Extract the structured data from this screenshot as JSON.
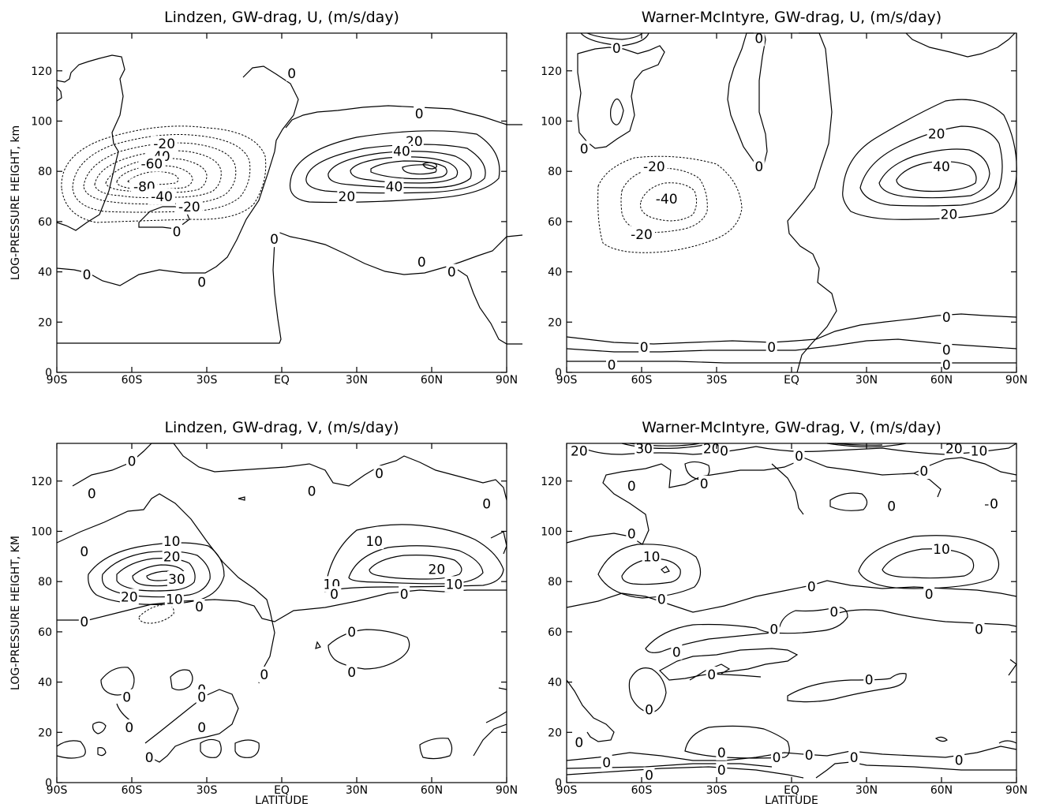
{
  "chart_data": [
    {
      "type": "contour",
      "title": "Lindzen, GW-drag, U, (m/s/day)",
      "ylabel": "LOG-PRESSURE HEIGHT, km",
      "xlabel": "",
      "x_ticks": [
        "90S",
        "60S",
        "30S",
        "EQ",
        "30N",
        "60N",
        "90N"
      ],
      "y_ticks": [
        "0",
        "20",
        "40",
        "60",
        "80",
        "100",
        "120"
      ],
      "ylim": [
        0,
        135
      ],
      "contour_labels": [
        {
          "text": "-20",
          "lat": -47,
          "z": 91
        },
        {
          "text": "-40",
          "lat": -49,
          "z": 86
        },
        {
          "text": "-60",
          "lat": -52,
          "z": 83
        },
        {
          "text": "-80",
          "lat": -55,
          "z": 74
        },
        {
          "text": "-40",
          "lat": -48,
          "z": 70
        },
        {
          "text": "-20",
          "lat": -37,
          "z": 66
        },
        {
          "text": "0",
          "lat": -42,
          "z": 56
        },
        {
          "text": "0",
          "lat": -78,
          "z": 39
        },
        {
          "text": "0",
          "lat": -32,
          "z": 36
        },
        {
          "text": "0",
          "lat": 4,
          "z": 119
        },
        {
          "text": "0",
          "lat": 55,
          "z": 103
        },
        {
          "text": "20",
          "lat": 53,
          "z": 92
        },
        {
          "text": "40",
          "lat": 48,
          "z": 88
        },
        {
          "text": "40",
          "lat": 45,
          "z": 74
        },
        {
          "text": "20",
          "lat": 26,
          "z": 70
        },
        {
          "text": "0",
          "lat": -3,
          "z": 53
        },
        {
          "text": "0",
          "lat": 56,
          "z": 44
        },
        {
          "text": "0",
          "lat": 68,
          "z": 40
        }
      ]
    },
    {
      "type": "contour",
      "title": "Warner-McIntyre, GW-drag, U, (m/s/day)",
      "ylabel": "",
      "xlabel": "",
      "x_ticks": [
        "90S",
        "60S",
        "30S",
        "EQ",
        "30N",
        "60N",
        "90N"
      ],
      "y_ticks": [
        "0",
        "20",
        "40",
        "60",
        "80",
        "100",
        "120"
      ],
      "ylim": [
        0,
        135
      ],
      "contour_labels": [
        {
          "text": "0",
          "lat": -70,
          "z": 129
        },
        {
          "text": "0",
          "lat": -13,
          "z": 133
        },
        {
          "text": "0",
          "lat": -83,
          "z": 89
        },
        {
          "text": "0",
          "lat": -13,
          "z": 82
        },
        {
          "text": "-20",
          "lat": -55,
          "z": 82
        },
        {
          "text": "-40",
          "lat": -50,
          "z": 69
        },
        {
          "text": "-20",
          "lat": -60,
          "z": 55
        },
        {
          "text": "20",
          "lat": 58,
          "z": 95
        },
        {
          "text": "40",
          "lat": 60,
          "z": 82
        },
        {
          "text": "20",
          "lat": 63,
          "z": 63
        },
        {
          "text": "0",
          "lat": -59,
          "z": 10
        },
        {
          "text": "0",
          "lat": -8,
          "z": 10
        },
        {
          "text": "0",
          "lat": 62,
          "z": 22
        },
        {
          "text": "0",
          "lat": 62,
          "z": 9
        },
        {
          "text": "0",
          "lat": -72,
          "z": 3
        },
        {
          "text": "0",
          "lat": 62,
          "z": 3
        }
      ]
    },
    {
      "type": "contour",
      "title": "Lindzen, GW-drag, V, (m/s/day)",
      "ylabel": "LOG-PRESSURE HEIGHT, KM",
      "xlabel": "LATITUDE",
      "x_ticks": [
        "90S",
        "60S",
        "30S",
        "EQ",
        "30N",
        "60N",
        "90N"
      ],
      "y_ticks": [
        "0",
        "20",
        "40",
        "60",
        "80",
        "100",
        "120"
      ],
      "ylim": [
        0,
        135
      ],
      "contour_labels": [
        {
          "text": "0",
          "lat": -60,
          "z": 128
        },
        {
          "text": "0",
          "lat": -76,
          "z": 115
        },
        {
          "text": "0",
          "lat": -79,
          "z": 92
        },
        {
          "text": "10",
          "lat": -44,
          "z": 96
        },
        {
          "text": "20",
          "lat": -44,
          "z": 90
        },
        {
          "text": "30",
          "lat": -42,
          "z": 81
        },
        {
          "text": "20",
          "lat": -61,
          "z": 74
        },
        {
          "text": "10",
          "lat": -43,
          "z": 73
        },
        {
          "text": "0",
          "lat": -33,
          "z": 70
        },
        {
          "text": "0",
          "lat": -79,
          "z": 64
        },
        {
          "text": "0",
          "lat": 12,
          "z": 116
        },
        {
          "text": "0",
          "lat": 39,
          "z": 123
        },
        {
          "text": "0",
          "lat": 82,
          "z": 111
        },
        {
          "text": "10",
          "lat": 37,
          "z": 96
        },
        {
          "text": "20",
          "lat": 62,
          "z": 85
        },
        {
          "text": "10",
          "lat": 20,
          "z": 79
        },
        {
          "text": "10",
          "lat": 69,
          "z": 79
        },
        {
          "text": "0",
          "lat": 21,
          "z": 75
        },
        {
          "text": "0",
          "lat": 49,
          "z": 75
        },
        {
          "text": "0",
          "lat": 28,
          "z": 60
        },
        {
          "text": "0",
          "lat": 28,
          "z": 44
        },
        {
          "text": "0",
          "lat": -7,
          "z": 43
        },
        {
          "text": "0",
          "lat": -32,
          "z": 37
        },
        {
          "text": "0",
          "lat": -32,
          "z": 34
        },
        {
          "text": "0",
          "lat": -62,
          "z": 34
        },
        {
          "text": "0",
          "lat": -61,
          "z": 22
        },
        {
          "text": "0",
          "lat": -32,
          "z": 22
        },
        {
          "text": "0",
          "lat": -53,
          "z": 10
        }
      ]
    },
    {
      "type": "contour",
      "title": "Warner-McIntyre, GW-drag, V, (m/s/day)",
      "ylabel": "",
      "xlabel": "LATITUDE",
      "x_ticks": [
        "90S",
        "60S",
        "30S",
        "EQ",
        "30N",
        "60N",
        "90N"
      ],
      "y_ticks": [
        "0",
        "20",
        "40",
        "60",
        "80",
        "100",
        "120"
      ],
      "ylim": [
        0,
        135
      ],
      "contour_labels": [
        {
          "text": "20",
          "lat": -85,
          "z": 132
        },
        {
          "text": "30",
          "lat": -59,
          "z": 133
        },
        {
          "text": "20",
          "lat": -32,
          "z": 133
        },
        {
          "text": "0",
          "lat": -27,
          "z": 132
        },
        {
          "text": "20",
          "lat": 65,
          "z": 133
        },
        {
          "text": "10",
          "lat": 75,
          "z": 132
        },
        {
          "text": "0",
          "lat": 3,
          "z": 130
        },
        {
          "text": "0",
          "lat": 53,
          "z": 124
        },
        {
          "text": "0",
          "lat": -64,
          "z": 118
        },
        {
          "text": "0",
          "lat": -35,
          "z": 119
        },
        {
          "text": "0",
          "lat": 40,
          "z": 110
        },
        {
          "text": "0",
          "lat": 81,
          "z": 111
        },
        {
          "text": "0",
          "lat": -64,
          "z": 99
        },
        {
          "text": "10",
          "lat": -56,
          "z": 90
        },
        {
          "text": "10",
          "lat": 60,
          "z": 93
        },
        {
          "text": "0",
          "lat": -52,
          "z": 73
        },
        {
          "text": "0",
          "lat": 8,
          "z": 78
        },
        {
          "text": "0",
          "lat": 55,
          "z": 75
        },
        {
          "text": "0",
          "lat": 17,
          "z": 68
        },
        {
          "text": "0",
          "lat": 75,
          "z": 61
        },
        {
          "text": "0",
          "lat": -46,
          "z": 52
        },
        {
          "text": "0",
          "lat": -7,
          "z": 61
        },
        {
          "text": "0",
          "lat": -32,
          "z": 43
        },
        {
          "text": "0",
          "lat": -57,
          "z": 29
        },
        {
          "text": "0",
          "lat": 31,
          "z": 41
        },
        {
          "text": "0",
          "lat": -85,
          "z": 16
        },
        {
          "text": "0",
          "lat": -74,
          "z": 8
        },
        {
          "text": "0",
          "lat": -28,
          "z": 12
        },
        {
          "text": "0",
          "lat": -28,
          "z": 5
        },
        {
          "text": "0",
          "lat": -6,
          "z": 10
        },
        {
          "text": "0",
          "lat": 7,
          "z": 11
        },
        {
          "text": "0",
          "lat": 25,
          "z": 10
        },
        {
          "text": "0",
          "lat": 67,
          "z": 9
        },
        {
          "text": "0",
          "lat": -57,
          "z": 3
        }
      ]
    }
  ]
}
